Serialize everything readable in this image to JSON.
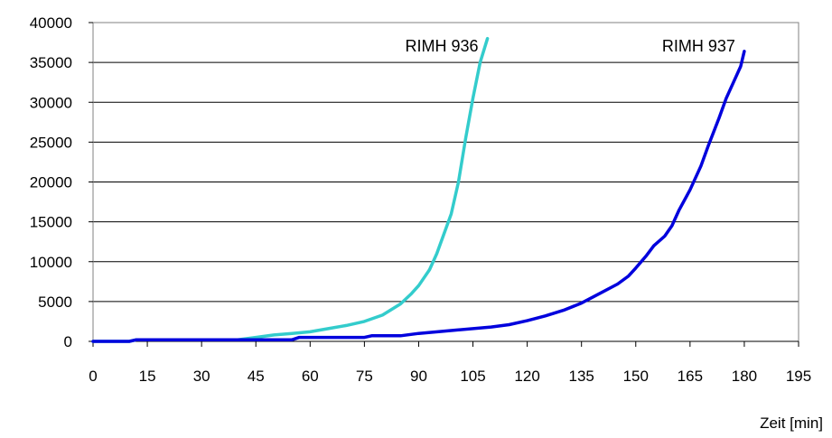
{
  "chart_data": {
    "type": "line",
    "xlabel": "Zeit [min]",
    "ylabel": "",
    "xlim": [
      0,
      195
    ],
    "ylim": [
      0,
      40000
    ],
    "x_ticks": [
      0,
      15,
      30,
      45,
      60,
      75,
      90,
      105,
      120,
      135,
      150,
      165,
      180,
      195
    ],
    "y_ticks": [
      0,
      5000,
      10000,
      15000,
      20000,
      25000,
      30000,
      35000,
      40000
    ],
    "grid": "horizontal",
    "legend": "inline labels",
    "series": [
      {
        "name": "RIMH 936",
        "color": "#33CCCC",
        "x": [
          0,
          10,
          12,
          20,
          30,
          40,
          45,
          50,
          55,
          60,
          65,
          70,
          75,
          80,
          85,
          88,
          90,
          93,
          95,
          97,
          99,
          101,
          103,
          105,
          107,
          109
        ],
        "y": [
          0,
          0,
          200,
          200,
          200,
          200,
          500,
          800,
          1000,
          1200,
          1600,
          2000,
          2500,
          3300,
          4700,
          6000,
          7000,
          9000,
          11000,
          13500,
          16000,
          20000,
          25500,
          30500,
          35000,
          38000
        ]
      },
      {
        "name": "RIMH 937",
        "color": "#0000DD",
        "x": [
          0,
          10,
          12,
          20,
          30,
          40,
          50,
          55,
          57,
          60,
          70,
          75,
          77,
          80,
          85,
          90,
          100,
          110,
          115,
          120,
          125,
          130,
          135,
          140,
          145,
          148,
          150,
          153,
          155,
          158,
          160,
          162,
          165,
          168,
          170,
          173,
          175,
          177,
          179,
          180
        ],
        "y": [
          0,
          0,
          200,
          200,
          200,
          200,
          200,
          200,
          500,
          500,
          500,
          500,
          700,
          700,
          700,
          1000,
          1400,
          1800,
          2100,
          2600,
          3200,
          3900,
          4800,
          6000,
          7200,
          8200,
          9200,
          10800,
          12000,
          13200,
          14500,
          16500,
          19000,
          22000,
          24500,
          28000,
          30500,
          32500,
          34500,
          36400
        ]
      }
    ]
  }
}
